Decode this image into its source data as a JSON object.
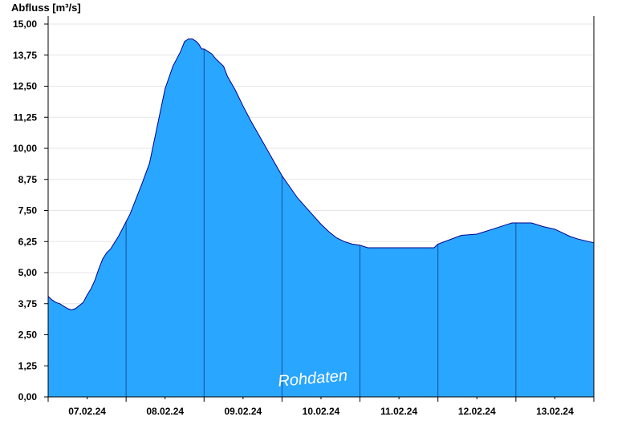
{
  "chart_data": {
    "type": "area",
    "title": "",
    "ylabel": "Abfluss [m³/s]",
    "xlabel": "",
    "ylim": [
      0,
      15
    ],
    "y_ticks": [
      "0,00",
      "1,25",
      "2,50",
      "3,75",
      "5,00",
      "6,25",
      "7,50",
      "8,75",
      "10,00",
      "11,25",
      "12,50",
      "13,75",
      "15,00"
    ],
    "x_tick_labels": [
      "07.02.24",
      "08.02.24",
      "09.02.24",
      "10.02.24",
      "11.02.24",
      "12.02.24",
      "13.02.24"
    ],
    "x_range_days": [
      0,
      7
    ],
    "grid": "horizontal",
    "fill_color": "#29a6ff",
    "line_color": "#00008b",
    "watermark": "Rohdaten",
    "series": [
      {
        "x": [
          0.0,
          0.05,
          0.1,
          0.15,
          0.2,
          0.25,
          0.3,
          0.35,
          0.45,
          0.5,
          0.55,
          0.6,
          0.65,
          0.7,
          0.75,
          0.8,
          0.85,
          0.9,
          0.95,
          1.0,
          1.05,
          1.1,
          1.15,
          1.2,
          1.3,
          1.4,
          1.5,
          1.6,
          1.7,
          1.75,
          1.8,
          1.85,
          1.9,
          1.93,
          1.97,
          2.0,
          2.05,
          2.1,
          2.15,
          2.25,
          2.3,
          2.4,
          2.5,
          2.6,
          2.7,
          2.8,
          2.9,
          3.0,
          3.1,
          3.2,
          3.3,
          3.4,
          3.5,
          3.6,
          3.7,
          3.8,
          3.9,
          4.0,
          4.1,
          4.2,
          4.3,
          4.4,
          4.5,
          4.6,
          4.9,
          4.95,
          5.0,
          5.3,
          5.5,
          5.7,
          5.95,
          6.2,
          6.35,
          6.5,
          6.6,
          6.7,
          6.8,
          7.0
        ],
        "y": [
          4.05,
          3.9,
          3.8,
          3.75,
          3.65,
          3.55,
          3.5,
          3.55,
          3.8,
          4.1,
          4.35,
          4.7,
          5.15,
          5.55,
          5.8,
          5.95,
          6.2,
          6.45,
          6.75,
          7.05,
          7.35,
          7.75,
          8.15,
          8.55,
          9.4,
          10.9,
          12.4,
          13.3,
          13.9,
          14.3,
          14.4,
          14.4,
          14.3,
          14.2,
          14.0,
          14.0,
          13.9,
          13.8,
          13.6,
          13.3,
          12.9,
          12.35,
          11.7,
          11.1,
          10.55,
          10.0,
          9.45,
          8.9,
          8.45,
          8.0,
          7.65,
          7.3,
          6.95,
          6.65,
          6.4,
          6.25,
          6.15,
          6.1,
          6.0,
          6.0,
          6.0,
          6.0,
          6.0,
          6.0,
          6.0,
          6.0,
          6.15,
          6.5,
          6.55,
          6.75,
          7.0,
          7.0,
          6.85,
          6.75,
          6.6,
          6.45,
          6.35,
          6.2
        ]
      }
    ]
  }
}
